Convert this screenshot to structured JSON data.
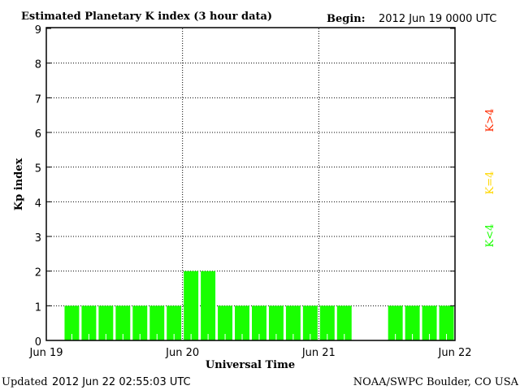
{
  "chart_data": {
    "type": "bar",
    "title": "Estimated Planetary K index (3 hour data)",
    "begin_label": "Begin:",
    "begin_value": "2012 Jun 19 0000 UTC",
    "xlabel": "Universal Time",
    "ylabel": "Kp index",
    "ylim": [
      0,
      9
    ],
    "yticks": [
      "0",
      "1",
      "2",
      "3",
      "4",
      "5",
      "6",
      "7",
      "8",
      "9"
    ],
    "xticks": [
      "Jun 19",
      "Jun 20",
      "Jun 21",
      "Jun 22"
    ],
    "interval_hours": 3,
    "values": [
      null,
      1,
      1,
      1,
      1,
      1,
      1,
      1,
      2,
      2,
      1,
      1,
      1,
      1,
      1,
      1,
      1,
      1,
      null,
      null,
      1,
      1,
      1,
      1
    ],
    "grid": true,
    "legend": [
      {
        "label": "K<4",
        "color": "#19ff00"
      },
      {
        "label": "K=4",
        "color": "#ffd700"
      },
      {
        "label": "K>4",
        "color": "#ff2a00"
      }
    ],
    "legend_placement": "right",
    "bar_color": "#19ff00"
  },
  "footer": {
    "updated_label": "Updated",
    "updated_value": "2012 Jun 22 02:55:03 UTC",
    "credit": "NOAA/SWPC Boulder, CO USA"
  }
}
